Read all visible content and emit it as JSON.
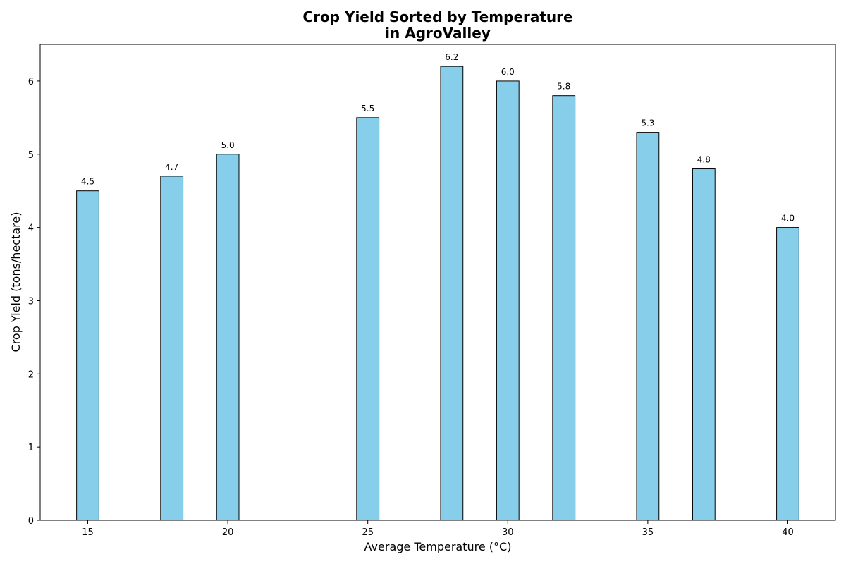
{
  "chart_data": {
    "type": "bar",
    "title_line1": "Crop Yield Sorted by Temperature",
    "title_line2": "in AgroValley",
    "xlabel": "Average Temperature (°C)",
    "ylabel": "Crop Yield (tons/hectare)",
    "x": [
      15,
      18,
      20,
      25,
      28,
      30,
      32,
      35,
      37,
      40
    ],
    "values": [
      4.5,
      4.7,
      5.0,
      5.5,
      6.2,
      6.0,
      5.8,
      5.3,
      4.8,
      4.0
    ],
    "data_labels": [
      "4.5",
      "4.7",
      "5.0",
      "5.5",
      "6.2",
      "6.0",
      "5.8",
      "5.3",
      "4.8",
      "4.0"
    ],
    "xticks": [
      15,
      20,
      25,
      30,
      35,
      40
    ],
    "yticks": [
      0,
      1,
      2,
      3,
      4,
      5,
      6
    ],
    "xlim": [
      13.3,
      41.7
    ],
    "ylim": [
      0,
      6.5
    ],
    "bar_width": 0.8,
    "bar_color": "#87CEEB",
    "edge_color": "#000000",
    "grid": false,
    "legend": "none"
  }
}
